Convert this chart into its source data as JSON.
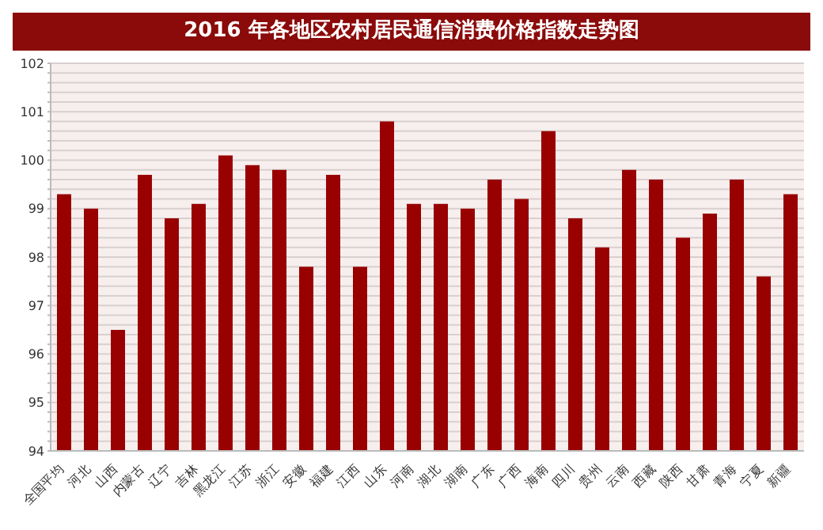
{
  "chart_data": {
    "type": "bar",
    "title": "2016 年各地区农村居民通信消费价格指数走势图",
    "categories": [
      "全国平均",
      "河北",
      "山西",
      "内蒙古",
      "辽宁",
      "吉林",
      "黑龙江",
      "江苏",
      "浙江",
      "安徽",
      "福建",
      "江西",
      "山东",
      "河南",
      "湖北",
      "湖南",
      "广东",
      "广西",
      "海南",
      "四川",
      "贵州",
      "云南",
      "西藏",
      "陕西",
      "甘肃",
      "青海",
      "宁夏",
      "新疆"
    ],
    "values": [
      99.3,
      99.0,
      96.5,
      99.7,
      98.8,
      99.1,
      100.1,
      99.9,
      99.8,
      97.8,
      99.7,
      97.8,
      100.8,
      99.1,
      99.1,
      99.0,
      99.6,
      99.2,
      100.6,
      98.8,
      98.2,
      99.8,
      99.6,
      98.4,
      98.9,
      99.6,
      97.6,
      99.3
    ],
    "color": "#990000",
    "ylim": [
      94,
      102
    ],
    "yticks": [
      94,
      {
        "value": 94.2,
        "label": null
      },
      {
        "value": 94.4,
        "label": null
      },
      {
        "value": 94.6,
        "label": null
      },
      {
        "value": 94.8,
        "label": null
      },
      95,
      {
        "value": 95.2,
        "label": null
      },
      {
        "value": 95.4,
        "label": null
      },
      {
        "value": 95.6,
        "label": null
      },
      {
        "value": 95.8,
        "label": null
      },
      96,
      {
        "value": 96.2,
        "label": null
      },
      {
        "value": 96.4,
        "label": null
      },
      {
        "value": 96.6,
        "label": null
      },
      {
        "value": 96.8,
        "label": null
      },
      97,
      {
        "value": 97.2,
        "label": null
      },
      {
        "value": 97.4,
        "label": null
      },
      {
        "value": 97.6,
        "label": null
      },
      {
        "value": 97.8,
        "label": null
      },
      98,
      {
        "value": 98.2,
        "label": null
      },
      {
        "value": 98.4,
        "label": null
      },
      {
        "value": 98.6,
        "label": null
      },
      {
        "value": 98.8,
        "label": null
      },
      99,
      {
        "value": 99.2,
        "label": null
      },
      {
        "value": 99.4,
        "label": null
      },
      {
        "value": 99.6,
        "label": null
      },
      {
        "value": 99.8,
        "label": null
      },
      100,
      {
        "value": 100.2,
        "label": null
      },
      {
        "value": 100.4,
        "label": null
      },
      {
        "value": 100.6,
        "label": null
      },
      {
        "value": 100.8,
        "label": null
      },
      101,
      {
        "value": 101.2,
        "label": null
      },
      {
        "value": 101.4,
        "label": null
      },
      {
        "value": 101.6,
        "label": null
      },
      {
        "value": 101.8,
        "label": null
      },
      102
    ],
    "grid": "y"
  }
}
